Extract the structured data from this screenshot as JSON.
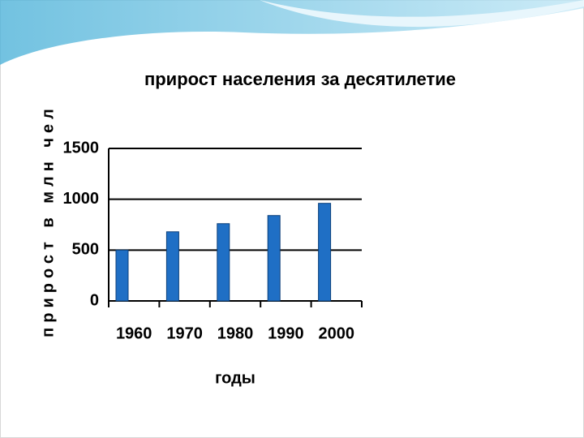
{
  "chart_data": {
    "type": "bar",
    "title": "прирост населения за десятилетие",
    "x_label": "годы",
    "y_label": "прирост в млн чел",
    "categories": [
      "1960",
      "1970",
      "1980",
      "1990",
      "2000"
    ],
    "values": [
      500,
      680,
      760,
      840,
      960
    ],
    "color": "#1f6fc5",
    "ylim": [
      0,
      1500
    ],
    "yticks": [
      0,
      500,
      1000,
      1500
    ],
    "grid": true
  }
}
